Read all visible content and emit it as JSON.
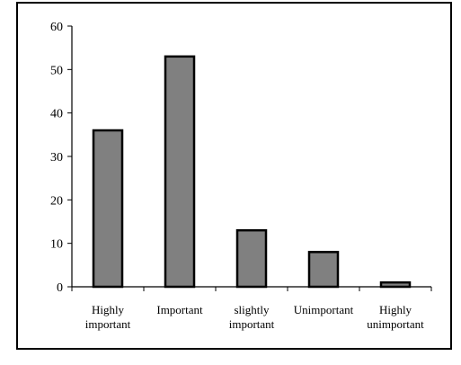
{
  "chart_data": {
    "type": "bar",
    "categories": [
      [
        "Highly",
        "important"
      ],
      [
        "Important"
      ],
      [
        "slightly",
        "important"
      ],
      [
        "Unimportant"
      ],
      [
        "Highly",
        "unimportant"
      ]
    ],
    "values": [
      36,
      53,
      13,
      8,
      1
    ],
    "ylim": [
      0,
      60
    ],
    "yticks": [
      0,
      10,
      20,
      30,
      40,
      50,
      60
    ],
    "grid": false,
    "bar_color": "#808080",
    "bar_edge_color": "#000000"
  }
}
